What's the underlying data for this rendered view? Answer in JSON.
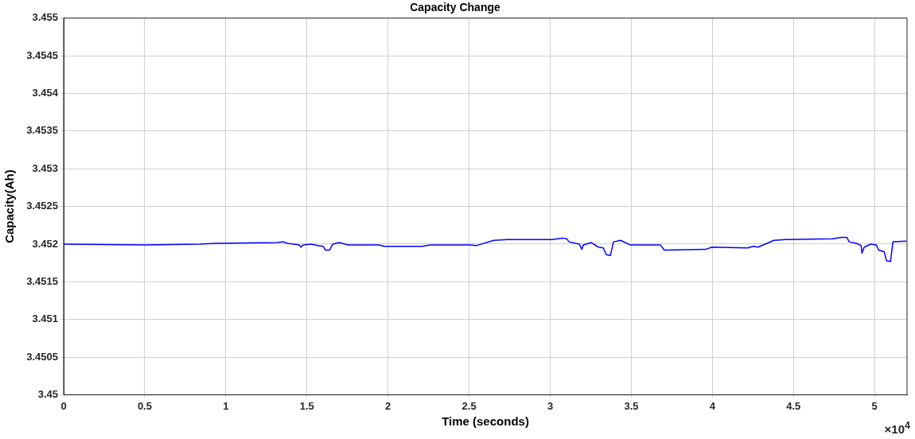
{
  "chart_data": {
    "type": "line",
    "title": "Capacity Change",
    "xlabel": "Time (seconds)",
    "ylabel": "Capacity(Ah)",
    "annotations": [
      "×10$^{4}$"
    ],
    "xlim": [
      0,
      5.2
    ],
    "xticks": [
      0,
      0.5,
      1,
      1.5,
      2,
      2.5,
      3,
      3.5,
      4,
      4.5,
      5
    ],
    "ylim": [
      3.45,
      3.455
    ],
    "yticks": [
      3.45,
      3.4505,
      3.451,
      3.4515,
      3.452,
      3.4525,
      3.453,
      3.4535,
      3.454,
      3.4545,
      3.455
    ],
    "grid": true,
    "legend": false,
    "marker": "none",
    "line_style": "solid",
    "x": [
      0,
      0.5,
      0.84,
      0.94,
      1.316,
      1.355,
      1.38,
      1.453,
      1.463,
      1.477,
      1.526,
      1.566,
      1.6,
      1.615,
      1.639,
      1.659,
      1.698,
      1.756,
      1.942,
      1.977,
      2.211,
      2.26,
      2.505,
      2.544,
      2.652,
      2.735,
      3.009,
      3.077,
      3.102,
      3.116,
      3.18,
      3.195,
      3.204,
      3.253,
      3.297,
      3.327,
      3.346,
      3.371,
      3.39,
      3.434,
      3.493,
      3.63,
      3.679,
      3.704,
      3.958,
      3.997,
      4.217,
      4.251,
      4.281,
      4.379,
      4.447,
      4.741,
      4.795,
      4.829,
      4.843,
      4.888,
      4.917,
      4.922,
      4.936,
      4.976,
      5.01,
      5.025,
      5.059,
      5.073,
      5.098,
      5.113,
      5.196
    ],
    "series": [
      {
        "color": "#0000ff",
        "values": [
          3.452,
          3.45199,
          3.452,
          3.45201,
          3.45202,
          3.45203,
          3.45201,
          3.45199,
          3.45196,
          3.45199,
          3.452,
          3.45198,
          3.45197,
          3.45192,
          3.45192,
          3.452,
          3.45202,
          3.45199,
          3.45199,
          3.45197,
          3.45197,
          3.45199,
          3.45199,
          3.45198,
          3.45205,
          3.45206,
          3.45206,
          3.45208,
          3.45207,
          3.45203,
          3.452,
          3.45193,
          3.45199,
          3.45202,
          3.45196,
          3.45195,
          3.45186,
          3.45185,
          3.45203,
          3.45205,
          3.45199,
          3.45199,
          3.45199,
          3.45192,
          3.45193,
          3.45196,
          3.45195,
          3.45197,
          3.45196,
          3.45205,
          3.45206,
          3.45207,
          3.45209,
          3.45209,
          3.45203,
          3.45201,
          3.45198,
          3.45188,
          3.45196,
          3.452,
          3.45199,
          3.45192,
          3.4519,
          3.45178,
          3.45177,
          3.45203,
          3.45204
        ]
      }
    ]
  }
}
